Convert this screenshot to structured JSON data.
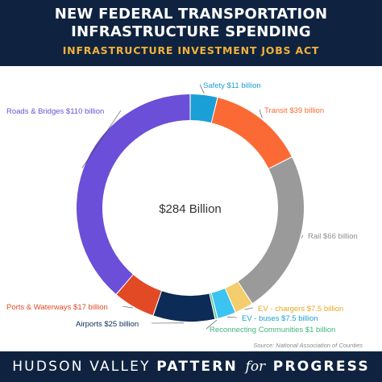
{
  "header": {
    "title_line1": "NEW FEDERAL TRANSPORTATION",
    "title_line2": "INFRASTRUCTURE SPENDING",
    "subtitle": "INFRASTRUCTURE INVESTMENT JOBS ACT"
  },
  "chart_data": {
    "type": "pie",
    "center_label": "$284 Billion",
    "slices": [
      {
        "label": "Safety $11 billion",
        "value": 11,
        "color": "#1a9fd6"
      },
      {
        "label": "Transit $39 billion",
        "value": 39,
        "color": "#fb6a35"
      },
      {
        "label": "Rail $66 billion",
        "value": 66,
        "color": "#9a9a9a"
      },
      {
        "label": "EV - chargers $7.5 billion",
        "value": 7.5,
        "color": "#f4cd6c"
      },
      {
        "label": "EV - buses $7.5 billion",
        "value": 7.5,
        "color": "#3cc3f2"
      },
      {
        "label": "Reconnecting Communities $1 billion",
        "value": 1,
        "color": "#5bc89b"
      },
      {
        "label": "Airports $25 billion",
        "value": 25,
        "color": "#0d2b57"
      },
      {
        "label": "Ports & Waterways $17 billion",
        "value": 17,
        "color": "#e24a25"
      },
      {
        "label": "Roads & Bridges $110 billion",
        "value": 110,
        "color": "#6b4fd8"
      }
    ]
  },
  "source": "Source: National Association of Counties",
  "footer": {
    "part1": "HUDSON VALLEY",
    "part2": "PATTERN",
    "part3": "for",
    "part4": "PROGRESS"
  }
}
